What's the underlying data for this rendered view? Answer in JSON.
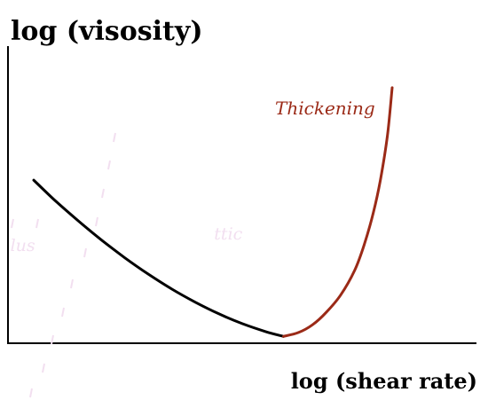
{
  "chart_data": {
    "type": "line",
    "ylabel": "log (visosity)",
    "xlabel": "log (shear rate)",
    "xlim": [
      0,
      10
    ],
    "ylim": [
      0,
      10
    ],
    "grid": false,
    "legend": "none",
    "annotations": [
      {
        "text": "Thickening",
        "x": 5.7,
        "y": 7.7,
        "color": "#9b2a17"
      },
      {
        "text": "lus",
        "x": 0.05,
        "y": 3.1,
        "color": "#f2dff0"
      },
      {
        "text": "ttic",
        "x": 4.4,
        "y": 3.5,
        "color": "#f2dff0"
      }
    ],
    "series": [
      {
        "color": "#000000",
        "x": [
          0.55,
          1.0,
          1.5,
          2.0,
          2.5,
          3.0,
          3.5,
          4.0,
          4.5,
          5.0,
          5.5,
          5.88
        ],
        "y": [
          5.49,
          4.81,
          4.12,
          3.47,
          2.87,
          2.32,
          1.82,
          1.38,
          0.99,
          0.66,
          0.39,
          0.23
        ]
      },
      {
        "color": "#9b2a17",
        "x": [
          5.88,
          6.2,
          6.5,
          6.8,
          7.1,
          7.4,
          7.6,
          7.8,
          7.95,
          8.1,
          8.2
        ],
        "y": [
          0.23,
          0.36,
          0.62,
          1.05,
          1.62,
          2.45,
          3.3,
          4.4,
          5.5,
          7.0,
          8.6
        ]
      }
    ]
  }
}
